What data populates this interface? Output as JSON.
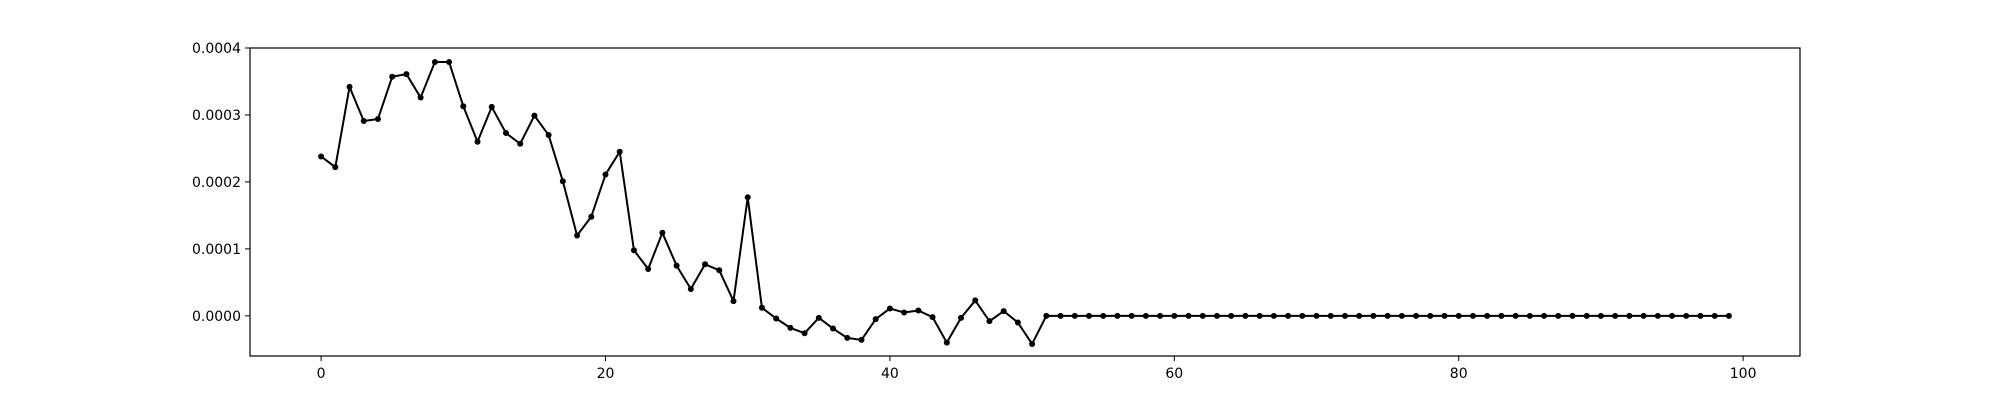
{
  "chart_data": {
    "type": "line",
    "title": "",
    "xlabel": "",
    "ylabel": "",
    "xlim": [
      -5,
      104
    ],
    "ylim": [
      -6e-05,
      0.0004
    ],
    "grid": false,
    "x_ticks": [
      {
        "value": 0,
        "label": "0"
      },
      {
        "value": 20,
        "label": "20"
      },
      {
        "value": 40,
        "label": "40"
      },
      {
        "value": 60,
        "label": "60"
      },
      {
        "value": 80,
        "label": "80"
      },
      {
        "value": 100,
        "label": "100"
      }
    ],
    "y_ticks": [
      {
        "value": 0.0,
        "label": "0.0000"
      },
      {
        "value": 0.0001,
        "label": "0.0001"
      },
      {
        "value": 0.0002,
        "label": "0.0002"
      },
      {
        "value": 0.0003,
        "label": "0.0003"
      },
      {
        "value": 0.0004,
        "label": "0.0004"
      }
    ],
    "series": [
      {
        "color": "#000000",
        "marker": "dot",
        "x": [
          0,
          1,
          2,
          3,
          4,
          5,
          6,
          7,
          8,
          9,
          10,
          11,
          12,
          13,
          14,
          15,
          16,
          17,
          18,
          19,
          20,
          21,
          22,
          23,
          24,
          25,
          26,
          27,
          28,
          29,
          30,
          31,
          32,
          33,
          34,
          35,
          36,
          37,
          38,
          39,
          40,
          41,
          42,
          43,
          44,
          45,
          46,
          47,
          48,
          49,
          50,
          51,
          52,
          53,
          54,
          55,
          56,
          57,
          58,
          59,
          60,
          61,
          62,
          63,
          64,
          65,
          66,
          67,
          68,
          69,
          70,
          71,
          72,
          73,
          74,
          75,
          76,
          77,
          78,
          79,
          80,
          81,
          82,
          83,
          84,
          85,
          86,
          87,
          88,
          89,
          90,
          91,
          92,
          93,
          94,
          95,
          96,
          97,
          98,
          99
        ],
        "values": [
          0.000238,
          0.000222,
          0.000342,
          0.000291,
          0.000294,
          0.000357,
          0.000361,
          0.000326,
          0.000379,
          0.000379,
          0.000313,
          0.00026,
          0.000312,
          0.000273,
          0.000257,
          0.000299,
          0.00027,
          0.000201,
          0.00012,
          0.000148,
          0.000211,
          0.000245,
          9.8e-05,
          7e-05,
          0.000124,
          7.5e-05,
          4e-05,
          7.7e-05,
          6.8e-05,
          2.2e-05,
          0.000177,
          1.2e-05,
          -4e-06,
          -1.8e-05,
          -2.6e-05,
          -3e-06,
          -1.9e-05,
          -3.3e-05,
          -3.6e-05,
          -5e-06,
          1.1e-05,
          5e-06,
          8e-06,
          -2e-06,
          -4e-05,
          -3e-06,
          2.3e-05,
          -8e-06,
          7e-06,
          -1e-05,
          -4.2e-05,
          0,
          0,
          0,
          0,
          0,
          0,
          0,
          0,
          0,
          0,
          0,
          0,
          0,
          0,
          0,
          0,
          0,
          0,
          0,
          0,
          0,
          0,
          0,
          0,
          0,
          0,
          0,
          0,
          0,
          0,
          0,
          0,
          0,
          0,
          0,
          0,
          0,
          0,
          0,
          0,
          0,
          0,
          0,
          0,
          0,
          0,
          0,
          0,
          0
        ]
      }
    ]
  }
}
